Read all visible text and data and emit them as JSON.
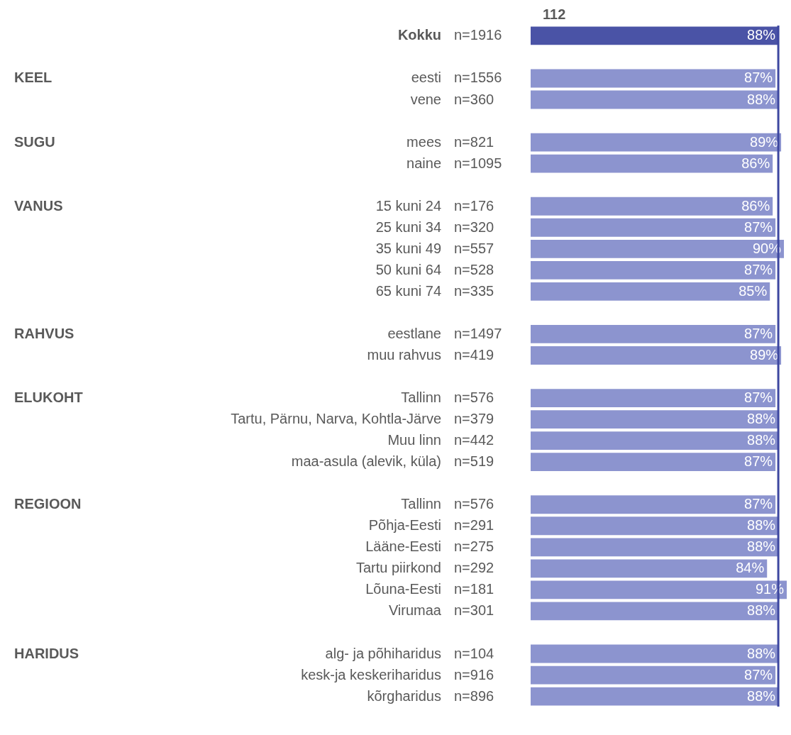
{
  "chart_data": {
    "type": "bar",
    "orientation": "horizontal",
    "title": "112",
    "categories": [
      "Kokku",
      null,
      "eesti",
      "vene",
      null,
      "mees",
      "naine",
      null,
      "15 kuni 24",
      "25 kuni 34",
      "35 kuni 49",
      "50 kuni 64",
      "65 kuni 74",
      null,
      "eestlane",
      "muu rahvus",
      null,
      "Tallinn",
      "Tartu, Pärnu, Narva, Kohtla-Järve",
      "Muu linn",
      "maa-asula (alevik, küla)",
      null,
      "Tallinn",
      "Põhja-Eesti",
      "Lääne-Eesti",
      "Tartu piirkond",
      "Lõuna-Eesti",
      "Virumaa",
      null,
      "alg- ja põhiharidus",
      "kesk-ja keskeriharidus",
      "kõrgharidus"
    ],
    "y2_categories": [
      "n=1916",
      null,
      "n=1556",
      "n=360",
      null,
      "n=821",
      "n=1095",
      null,
      "n=176",
      "n=320",
      "n=557",
      "n=528",
      "n=335",
      null,
      "n=1497",
      "n=419",
      null,
      "n=576",
      "n=379",
      "n=442",
      "n=519",
      null,
      "n=576",
      "n=291",
      "n=275",
      "n=292",
      "n=181",
      "n=301",
      null,
      "n=104",
      "n=916",
      "n=896"
    ],
    "values": [
      88,
      null,
      87,
      88,
      null,
      89,
      86,
      null,
      86,
      87,
      90,
      87,
      85,
      null,
      87,
      89,
      null,
      87,
      88,
      88,
      87,
      null,
      87,
      88,
      88,
      84,
      91,
      88,
      null,
      88,
      87,
      88
    ],
    "value_labels": [
      "88%",
      null,
      "87%",
      "88%",
      null,
      "89%",
      "86%",
      null,
      "86%",
      "87%",
      "90%",
      "87%",
      "85%",
      null,
      "87%",
      "89%",
      null,
      "87%",
      "88%",
      "88%",
      "87%",
      null,
      "87%",
      "88%",
      "88%",
      "84%",
      "91%",
      "88%",
      null,
      "88%",
      "87%",
      "88%"
    ],
    "colors": [
      "#4a53a6",
      null,
      "#8c94cf",
      "#8c94cf",
      null,
      "#8c94cf",
      "#8c94cf",
      null,
      "#8c94cf",
      "#8c94cf",
      "#8c94cf",
      "#8c94cf",
      "#8c94cf",
      null,
      "#8c94cf",
      "#8c94cf",
      null,
      "#8c94cf",
      "#8c94cf",
      "#8c94cf",
      "#8c94cf",
      null,
      "#8c94cf",
      "#8c94cf",
      "#8c94cf",
      "#8c94cf",
      "#8c94cf",
      "#8c94cf",
      null,
      "#8c94cf",
      "#8c94cf",
      "#8c94cf"
    ],
    "annotations": [
      "KEEL",
      "SUGU",
      "VANUS",
      "RAHVUS",
      "ELUKOHT",
      "REGIOON",
      "HARIDUS"
    ],
    "ref_lines": [
      {
        "axis": "x",
        "value": 88,
        "color": "#3d47a0"
      }
    ]
  }
}
